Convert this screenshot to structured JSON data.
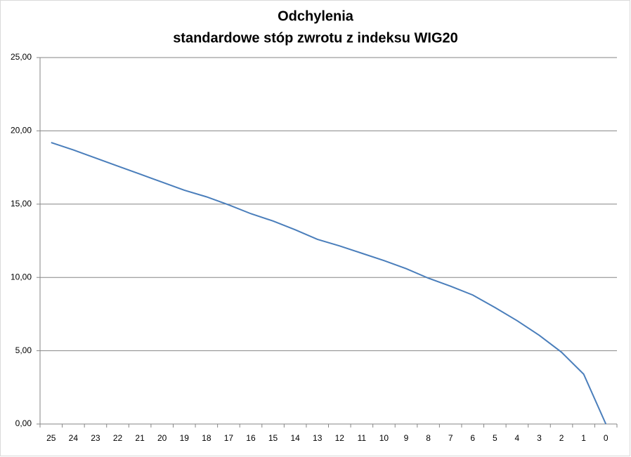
{
  "chart_data": {
    "type": "line",
    "title": "Odchylenia",
    "subtitle": "standardowe stóp zwrotu z indeksu WIG20",
    "categories": [
      "25",
      "24",
      "23",
      "22",
      "21",
      "20",
      "19",
      "18",
      "17",
      "16",
      "15",
      "14",
      "13",
      "12",
      "11",
      "10",
      "9",
      "8",
      "7",
      "6",
      "5",
      "4",
      "3",
      "2",
      "1",
      "0"
    ],
    "series": [
      {
        "name": "Odchylenia",
        "color": "#4a7ebb",
        "values": [
          19.2,
          18.7,
          18.15,
          17.6,
          17.05,
          16.5,
          15.95,
          15.5,
          14.95,
          14.35,
          13.85,
          13.25,
          12.6,
          12.15,
          11.65,
          11.15,
          10.6,
          9.95,
          9.4,
          8.8,
          7.95,
          7.05,
          6.05,
          4.9,
          3.4,
          0
        ]
      }
    ],
    "ylim": [
      0,
      25
    ],
    "yticks": [
      {
        "value": 0,
        "label": "0,00"
      },
      {
        "value": 5,
        "label": "5,00"
      },
      {
        "value": 10,
        "label": "10,00"
      },
      {
        "value": 15,
        "label": "15,00"
      },
      {
        "value": 20,
        "label": "20,00"
      },
      {
        "value": 25,
        "label": "25,00"
      }
    ],
    "grid": true
  }
}
